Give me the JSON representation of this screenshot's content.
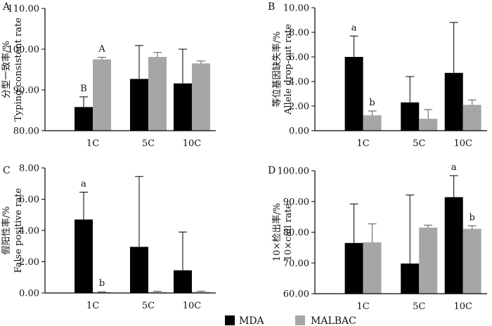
{
  "legend": [
    {
      "label": "MDA",
      "color": "#000000"
    },
    {
      "label": "MALBAC",
      "color": "#a6a6a6"
    }
  ],
  "chart_data": [
    {
      "type": "bar",
      "panel": "A",
      "ylabel_lines": [
        "分型一致率/%",
        "Typing consistent rate"
      ],
      "categories": [
        "1C",
        "5C",
        "10C"
      ],
      "ylim": [
        80,
        110
      ],
      "yticks": [
        "80.00",
        "90.00",
        "100.00",
        "110.00"
      ],
      "series": [
        {
          "name": "MDA",
          "values": [
            85.8,
            92.7,
            91.6
          ],
          "err": [
            2.5,
            8.2,
            8.4
          ]
        },
        {
          "name": "MALBAC",
          "values": [
            97.5,
            98.1,
            96.5
          ],
          "err": [
            0.5,
            1.1,
            0.6
          ]
        }
      ],
      "letters": [
        {
          "cat": 0,
          "series": 0,
          "text": "B"
        },
        {
          "cat": 0,
          "series": 1,
          "text": "A"
        }
      ]
    },
    {
      "type": "bar",
      "panel": "B",
      "ylabel_lines": [
        "等位基因缺失率/%",
        "Allele drop-out rate"
      ],
      "categories": [
        "1C",
        "5C",
        "10C"
      ],
      "ylim": [
        0,
        10
      ],
      "yticks": [
        "0.00",
        "2.00",
        "4.00",
        "6.00",
        "8.00",
        "10.00"
      ],
      "series": [
        {
          "name": "MDA",
          "values": [
            6.0,
            2.3,
            4.7
          ],
          "err": [
            1.7,
            2.1,
            4.1
          ]
        },
        {
          "name": "MALBAC",
          "values": [
            1.25,
            0.97,
            2.1
          ],
          "err": [
            0.35,
            0.75,
            0.4
          ]
        }
      ],
      "letters": [
        {
          "cat": 0,
          "series": 0,
          "text": "a"
        },
        {
          "cat": 0,
          "series": 1,
          "text": "b"
        }
      ]
    },
    {
      "type": "bar",
      "panel": "C",
      "ylabel_lines": [
        "假阳性率/%",
        "False positive rate"
      ],
      "categories": [
        "1C",
        "5C",
        "10C"
      ],
      "ylim": [
        0,
        8
      ],
      "yticks": [
        "0.00",
        "2.00",
        "4.00",
        "6.00",
        "8.00"
      ],
      "series": [
        {
          "name": "MDA",
          "values": [
            4.7,
            2.95,
            1.45
          ],
          "err": [
            1.75,
            4.5,
            2.45
          ]
        },
        {
          "name": "MALBAC",
          "values": [
            0.05,
            0.06,
            0.07
          ],
          "err": [
            0.03,
            0.05,
            0.05
          ]
        }
      ],
      "letters": [
        {
          "cat": 0,
          "series": 0,
          "text": "a"
        },
        {
          "cat": 0,
          "series": 1,
          "text": "b"
        }
      ]
    },
    {
      "type": "bar",
      "panel": "D",
      "ylabel_lines": [
        "10×检出率/%",
        "10×call rate"
      ],
      "categories": [
        "1C",
        "5C",
        "10C"
      ],
      "ylim": [
        60,
        100
      ],
      "yticks": [
        "60.00",
        "70.00",
        "80.00",
        "90.00",
        "100.00"
      ],
      "series": [
        {
          "name": "MDA",
          "values": [
            76.5,
            69.8,
            91.4
          ],
          "err": [
            12.7,
            22.3,
            7.0
          ]
        },
        {
          "name": "MALBAC",
          "values": [
            76.7,
            81.5,
            81.1
          ],
          "err": [
            6.0,
            0.8,
            1.0
          ]
        }
      ],
      "letters": [
        {
          "cat": 2,
          "series": 0,
          "text": "a"
        },
        {
          "cat": 2,
          "series": 1,
          "text": "b"
        }
      ]
    }
  ]
}
